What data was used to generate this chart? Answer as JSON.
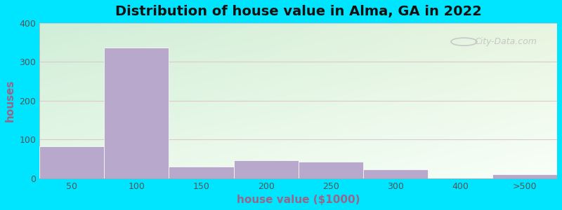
{
  "title": "Distribution of house value in Alma, GA in 2022",
  "xlabel": "house value ($1000)",
  "ylabel": "houses",
  "bar_color": "#b8a8cc",
  "bar_edgecolor": "#ffffff",
  "ylim": [
    0,
    400
  ],
  "yticks": [
    0,
    100,
    200,
    300,
    400
  ],
  "values": [
    83,
    337,
    30,
    46,
    42,
    22,
    0,
    10
  ],
  "xtick_labels": [
    "50",
    "100",
    "150",
    "200",
    "250",
    "300",
    "400",
    ">500"
  ],
  "bg_top_left": "#d8eedd",
  "bg_top_right": "#eef5e8",
  "bg_bottom_left": "#eefaf0",
  "bg_bottom_right": "#fafffe",
  "outer_bg": "#00e5ff",
  "grid_color": "#ddc8cc",
  "title_fontsize": 14,
  "axis_label_fontsize": 11,
  "tick_fontsize": 9,
  "tick_color": "#555555",
  "label_color": "#996688",
  "watermark_text": "City-Data.com"
}
